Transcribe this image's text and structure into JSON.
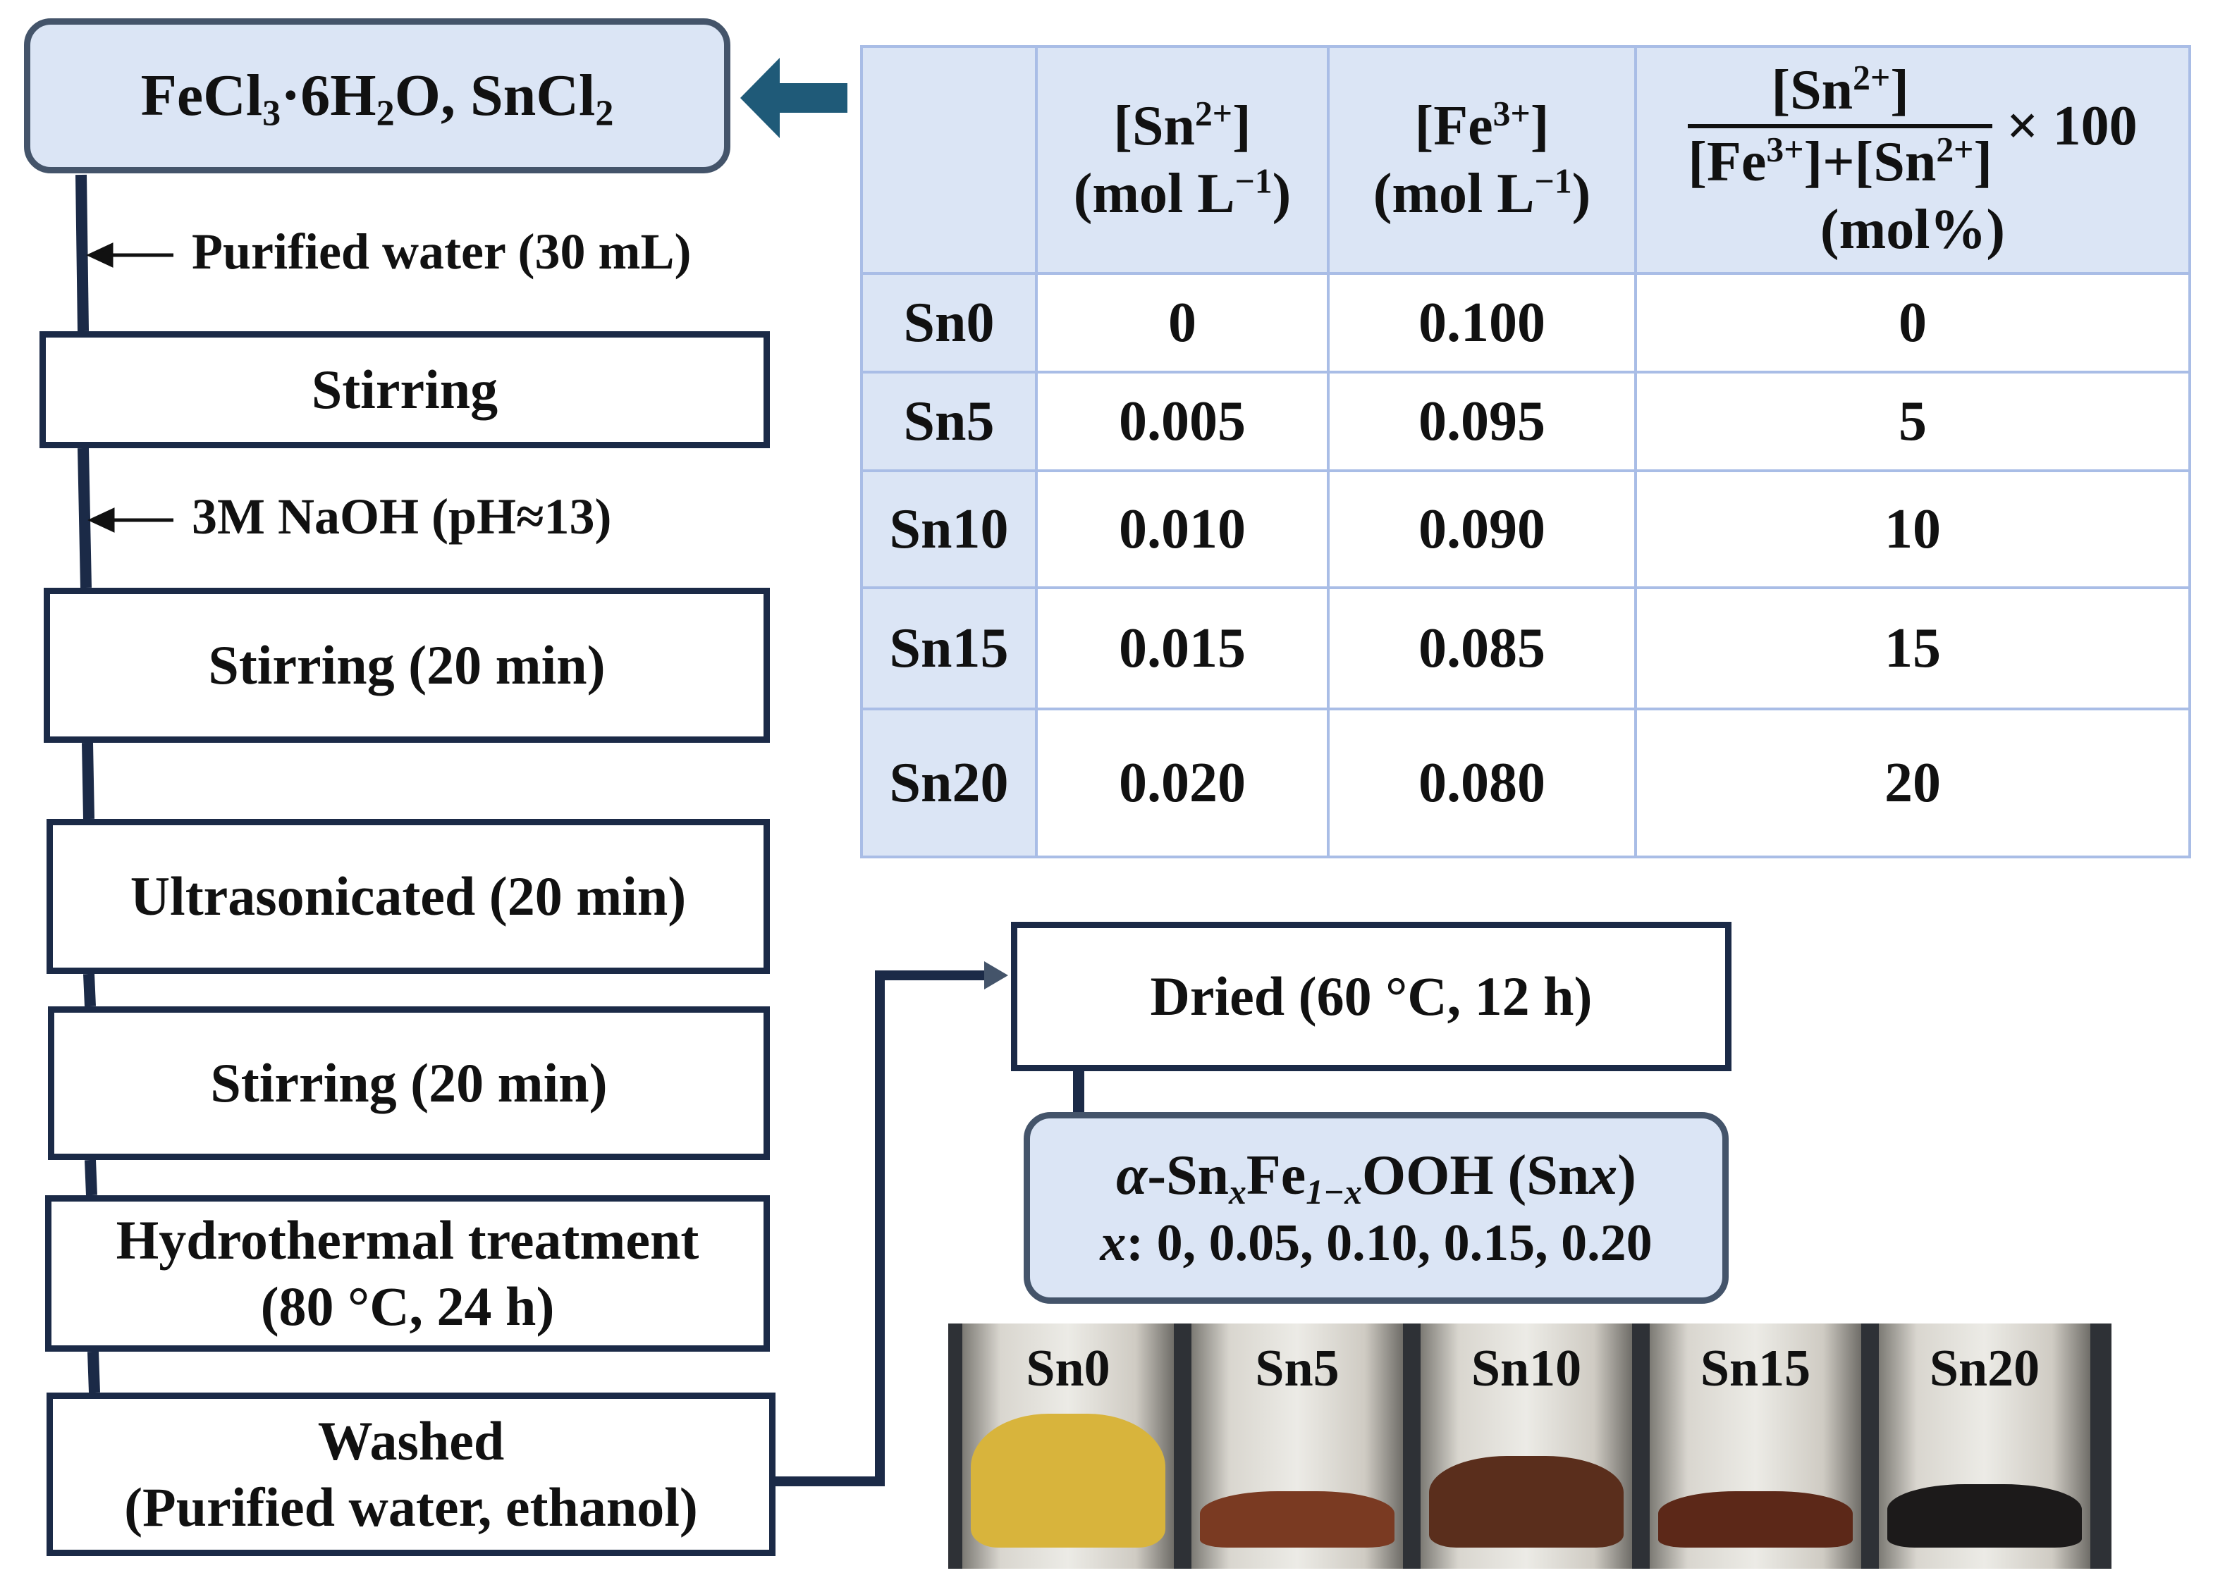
{
  "flow": {
    "start": {
      "prefix": "FeCl",
      "n3": "3",
      "dot": "·6H",
      "n2": "2",
      "mid": "O, SnCl",
      "n2b": "2"
    },
    "note_water": "Purified water (30 mL)",
    "step_stir1": "Stirring",
    "note_naoh": "3M NaOH (pH≈13)",
    "step_stir2": "Stirring (20 min)",
    "step_ultra": "Ultrasonicated (20 min)",
    "step_stir3": "Stirring (20 min)",
    "step_hydro_1": "Hydrothermal treatment",
    "step_hydro_2": "(80 °C, 24 h)",
    "step_wash_1": "Washed",
    "step_wash_2": "(Purified water, ethanol)",
    "step_dried": "Dried (60 °C, 12 h)",
    "product": {
      "alpha": "α",
      "sn": "-Sn",
      "x1": "x",
      "fe": "Fe",
      "sub2": "1−x",
      "tail": "OOH (Sn",
      "x2": "x",
      "close": ")",
      "line2_x": "x",
      "line2_rest": ": 0, 0.05, 0.10, 0.15, 0.20"
    }
  },
  "table": {
    "headers": {
      "sn_top": "[Sn",
      "sn_sup": "2+",
      "sn_close": "]",
      "sn_unit_a": "(mol L",
      "sn_unit_sup": "−1",
      "sn_unit_b": ")",
      "fe_top": "[Fe",
      "fe_sup": "3+",
      "fe_close": "]",
      "fe_unit_a": "(mol L",
      "fe_unit_sup": "−1",
      "fe_unit_b": ")",
      "frac_num_a": "[Sn",
      "frac_num_sup": "2+",
      "frac_num_b": "]",
      "frac_den_a": "[Fe",
      "frac_den_sup": "3+",
      "frac_den_b": "]+[Sn",
      "frac_den_sup2": "2+",
      "frac_den_c": "]",
      "times": "× 100",
      "unit": "(mol%)"
    },
    "rows": [
      {
        "label": "Sn0",
        "sn": "0",
        "fe": "0.100",
        "mol": "0"
      },
      {
        "label": "Sn5",
        "sn": "0.005",
        "fe": "0.095",
        "mol": "5"
      },
      {
        "label": "Sn10",
        "sn": "0.010",
        "fe": "0.090",
        "mol": "10"
      },
      {
        "label": "Sn15",
        "sn": "0.015",
        "fe": "0.085",
        "mol": "15"
      },
      {
        "label": "Sn20",
        "sn": "0.020",
        "fe": "0.080",
        "mol": "20"
      }
    ]
  },
  "photo": {
    "vials": [
      {
        "label": "Sn0",
        "powder_color": "#d8b43c"
      },
      {
        "label": "Sn5",
        "powder_color": "#7a3a22"
      },
      {
        "label": "Sn10",
        "powder_color": "#5a2e1c"
      },
      {
        "label": "Sn15",
        "powder_color": "#5c2818"
      },
      {
        "label": "Sn20",
        "powder_color": "#1c1a1a"
      }
    ]
  },
  "colors": {
    "line": "#1b2a47",
    "arrow": "#1f5a78",
    "panel": "#dbe5f5",
    "grid": "#a9bde6"
  }
}
